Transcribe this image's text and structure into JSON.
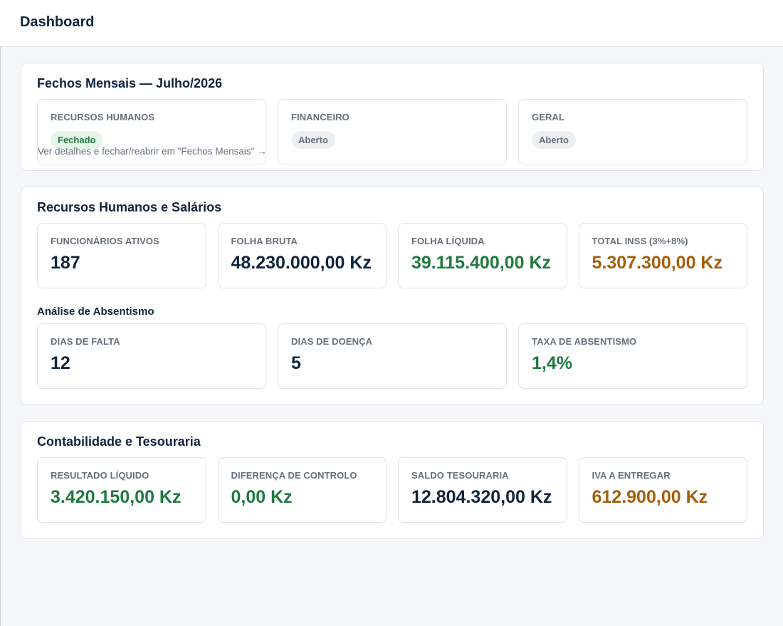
{
  "header": {
    "title": "Dashboard"
  },
  "fechos": {
    "title": "Fechos Mensais — Julho/2026",
    "items": [
      {
        "label": "RECURSOS HUMANOS",
        "status": "Fechado",
        "state": "closed",
        "link": "Ver detalhes e fechar/reabrir em \"Fechos Mensais\" →"
      },
      {
        "label": "FINANCEIRO",
        "status": "Aberto",
        "state": "open"
      },
      {
        "label": "GERAL",
        "status": "Aberto",
        "state": "open"
      }
    ]
  },
  "rh": {
    "title": "Recursos Humanos e Salários",
    "kpis": [
      {
        "label": "FUNCIONÁRIOS ATIVOS",
        "value": "187",
        "tone": "dark"
      },
      {
        "label": "FOLHA BRUTA",
        "value": "48.230.000,00 Kz",
        "tone": "dark"
      },
      {
        "label": "FOLHA LÍQUIDA",
        "value": "39.115.400,00 Kz",
        "tone": "green"
      },
      {
        "label": "TOTAL INSS (3%+8%)",
        "value": "5.307.300,00 Kz",
        "tone": "orange"
      }
    ],
    "absentismo": {
      "title": "Análise de Absentismo",
      "kpis": [
        {
          "label": "DIAS DE FALTA",
          "value": "12",
          "tone": "dark"
        },
        {
          "label": "DIAS DE DOENÇA",
          "value": "5",
          "tone": "dark"
        },
        {
          "label": "TAXA DE ABSENTISMO",
          "value": "1,4%",
          "tone": "green"
        }
      ]
    }
  },
  "contabilidade": {
    "title": "Contabilidade e Tesouraria",
    "kpis": [
      {
        "label": "RESULTADO LÍQUIDO",
        "value": "3.420.150,00 Kz",
        "tone": "green"
      },
      {
        "label": "DIFERENÇA DE CONTROLO",
        "value": "0,00 Kz",
        "tone": "green"
      },
      {
        "label": "SALDO TESOURARIA",
        "value": "12.804.320,00 Kz",
        "tone": "dark"
      },
      {
        "label": "IVA A ENTREGAR",
        "value": "612.900,00 Kz",
        "tone": "orange"
      }
    ]
  },
  "colors": {
    "primary_text": "#10243e",
    "muted_text": "#66707c",
    "positive": "#1f7a3f",
    "warning": "#a35f0c",
    "badge_closed_bg": "#e5f5ea",
    "badge_open_bg": "#edf0f3"
  }
}
